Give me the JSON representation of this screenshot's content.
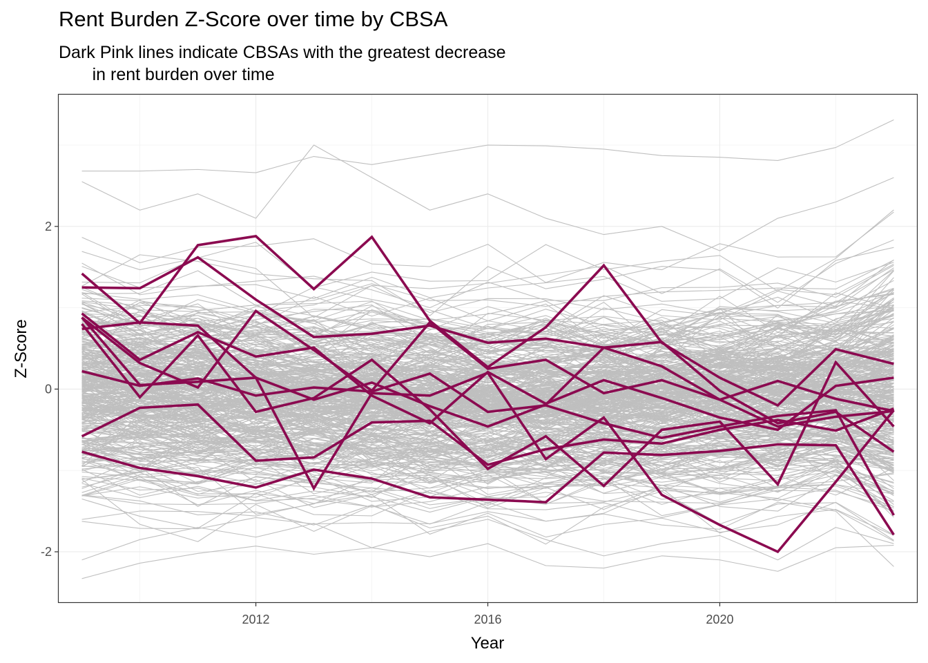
{
  "chart_data": {
    "type": "line",
    "title": "Rent Burden Z-Score over time by CBSA",
    "subtitle": "Dark Pink lines indicate CBSAs with the greatest decrease\n       in rent burden over time",
    "xlabel": "Year",
    "ylabel": "Z-Score",
    "xlim": [
      2008.6,
      2023.4
    ],
    "ylim": [
      -2.62,
      3.62
    ],
    "x_ticks": [
      2012,
      2016,
      2020
    ],
    "y_ticks": [
      -2,
      0,
      2
    ],
    "x_tick_labels": [
      "2012",
      "2016",
      "2020"
    ],
    "y_tick_labels": [
      "-2",
      "0",
      "2"
    ],
    "grid": true,
    "legend": "none",
    "colors": {
      "background": "#ffffff",
      "grid": "#ebebeb",
      "panel_border": "#333333",
      "background_series": "#bfbfbf",
      "highlight_series": "#8b0a50"
    },
    "x": [
      2009,
      2010,
      2011,
      2012,
      2013,
      2014,
      2015,
      2016,
      2017,
      2018,
      2019,
      2020,
      2021,
      2022,
      2023
    ],
    "background_series_count": 380,
    "background_series_sample": [
      {
        "values": [
          2.68,
          2.68,
          2.7,
          2.66,
          2.86,
          2.76,
          2.88,
          3.0,
          2.99,
          2.95,
          2.87,
          2.85,
          2.81,
          2.97,
          3.31
        ]
      },
      {
        "values": [
          -2.33,
          -2.14,
          -2.02,
          -1.93,
          -2.03,
          -1.95,
          -2.06,
          -1.9,
          -2.17,
          -2.2,
          -2.05,
          -2.1,
          -2.24,
          -1.95,
          -1.92
        ]
      },
      {
        "values": [
          2.55,
          2.2,
          2.4,
          2.1,
          3.0,
          2.6,
          2.2,
          2.4,
          2.1,
          1.9,
          2.0,
          1.7,
          2.1,
          2.3,
          2.6
        ]
      },
      {
        "values": [
          -2.1,
          -1.85,
          -1.7,
          -1.82,
          -1.65,
          -1.95,
          -1.75,
          -1.6,
          -1.85,
          -2.05,
          -1.9,
          -1.8,
          -2.1,
          -1.7,
          -1.9
        ]
      }
    ],
    "series": [
      {
        "values": [
          1.25,
          1.24,
          1.62,
          1.1,
          0.64,
          0.68,
          0.78,
          0.57,
          0.62,
          0.51,
          0.58,
          -0.02,
          -0.42,
          -0.28,
          -0.77
        ]
      },
      {
        "values": [
          1.42,
          0.81,
          1.77,
          1.88,
          1.23,
          1.87,
          0.84,
          0.27,
          0.76,
          1.52,
          0.57,
          0.14,
          -0.2,
          0.49,
          0.31
        ]
      },
      {
        "values": [
          0.93,
          0.36,
          0.7,
          0.4,
          0.51,
          -0.08,
          -0.42,
          0.21,
          -0.18,
          0.11,
          -0.11,
          -0.35,
          -0.5,
          0.04,
          0.14
        ]
      },
      {
        "values": [
          0.88,
          0.32,
          0.02,
          0.96,
          0.48,
          -0.02,
          0.82,
          0.25,
          0.36,
          -0.05,
          0.11,
          -0.13,
          0.1,
          -0.12,
          -0.27
        ]
      },
      {
        "values": [
          0.8,
          -0.1,
          0.66,
          -0.28,
          -0.11,
          0.36,
          -0.25,
          -0.98,
          -0.58,
          -1.19,
          -0.5,
          -0.4,
          -1.17,
          0.33,
          -0.46
        ]
      },
      {
        "values": [
          0.74,
          0.82,
          0.78,
          0.14,
          -0.13,
          0.08,
          -0.21,
          -0.46,
          -0.19,
          0.51,
          0.28,
          -0.13,
          -0.46,
          -0.34,
          -0.27
        ]
      },
      {
        "values": [
          0.22,
          0.04,
          0.13,
          -0.08,
          0.02,
          -0.03,
          0.19,
          -0.28,
          -0.2,
          -0.42,
          -0.6,
          -0.46,
          -0.33,
          -0.26,
          -1.55
        ]
      },
      {
        "values": [
          -0.58,
          -0.23,
          -0.19,
          -0.88,
          -0.84,
          -0.41,
          -0.39,
          -0.93,
          -0.74,
          -0.62,
          -0.67,
          -0.5,
          -0.38,
          -0.51,
          -0.24
        ]
      },
      {
        "values": [
          -0.77,
          -0.97,
          -1.07,
          -1.21,
          -0.99,
          -1.1,
          -1.33,
          -1.36,
          -1.39,
          -0.78,
          -0.81,
          -0.76,
          -0.68,
          -0.69,
          -1.79
        ]
      },
      {
        "values": [
          0.88,
          0.05,
          0.09,
          0.14,
          -1.22,
          -0.05,
          -0.08,
          0.2,
          -0.86,
          -0.35,
          -1.3,
          -1.67,
          -2.0,
          -1.14,
          -0.26
        ]
      }
    ]
  }
}
